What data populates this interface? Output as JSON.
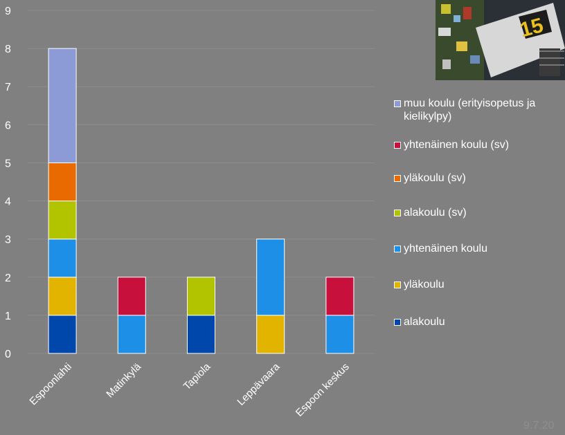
{
  "chart_data": {
    "type": "bar",
    "stacked": true,
    "categories": [
      "Espoonlahti",
      "Matinkylä",
      "Tapiola",
      "Leppävaara",
      "Espoon keskus"
    ],
    "series": [
      {
        "name": "alakoulu",
        "color": "#0047ab",
        "values": [
          1,
          0,
          1,
          0,
          0
        ]
      },
      {
        "name": "yläkoulu",
        "color": "#e2b400",
        "values": [
          1,
          0,
          0,
          1,
          0
        ]
      },
      {
        "name": "yhtenäinen koulu",
        "color": "#1e8fe6",
        "values": [
          1,
          1,
          0,
          2,
          1
        ]
      },
      {
        "name": "alakoulu (sv)",
        "color": "#b2c300",
        "values": [
          1,
          0,
          1,
          0,
          0
        ]
      },
      {
        "name": "yläkoulu (sv)",
        "color": "#e86a00",
        "values": [
          1,
          0,
          0,
          0,
          0
        ]
      },
      {
        "name": "yhtenäinen koulu (sv)",
        "color": "#c8103c",
        "values": [
          0,
          1,
          0,
          0,
          1
        ]
      },
      {
        "name": "muu koulu (erityisopetus ja kielikylpy)",
        "color": "#8c9bd6",
        "values": [
          3,
          0,
          0,
          0,
          0
        ]
      }
    ],
    "yticks": [
      "0",
      "1",
      "2",
      "3",
      "4",
      "5",
      "6",
      "7",
      "8",
      "9"
    ],
    "ylim": [
      0,
      9
    ],
    "grid": true,
    "legend": "right"
  },
  "footer": "9.7.20",
  "photo": {
    "sign_number": "15"
  }
}
